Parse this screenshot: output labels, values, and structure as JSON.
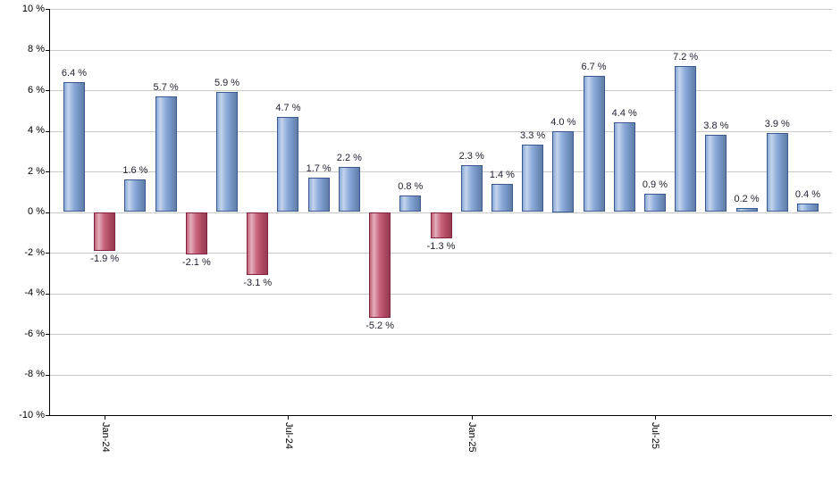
{
  "chart_data": {
    "type": "bar",
    "title": "",
    "xlabel": "",
    "ylabel": "",
    "grid": true,
    "legend_position": "none",
    "y_axis": {
      "min": -10,
      "max": 10,
      "step": 2,
      "suffix": " %",
      "tick_labels": [
        "10 %",
        "8 %",
        "6 %",
        "4 %",
        "2 %",
        "0 %",
        "-2 %",
        "-4 %",
        "-6 %",
        "-8 %",
        "-10 %"
      ]
    },
    "bars": [
      {
        "value": 6.4,
        "label": "6.4 %"
      },
      {
        "value": -1.9,
        "label": "-1.9 %"
      },
      {
        "value": 1.6,
        "label": "1.6 %"
      },
      {
        "value": 5.7,
        "label": "5.7 %"
      },
      {
        "value": -2.1,
        "label": "-2.1 %"
      },
      {
        "value": 5.9,
        "label": "5.9 %"
      },
      {
        "value": -3.1,
        "label": "-3.1 %"
      },
      {
        "value": 4.7,
        "label": "4.7 %"
      },
      {
        "value": 1.7,
        "label": "1.7 %"
      },
      {
        "value": 2.2,
        "label": "2.2 %"
      },
      {
        "value": -5.2,
        "label": "-5.2 %"
      },
      {
        "value": 0.8,
        "label": "0.8 %"
      },
      {
        "value": -1.3,
        "label": "-1.3 %"
      },
      {
        "value": 2.3,
        "label": "2.3 %"
      },
      {
        "value": 1.4,
        "label": "1.4 %"
      },
      {
        "value": 3.3,
        "label": "3.3 %"
      },
      {
        "value": 4.0,
        "label": "4.0 %"
      },
      {
        "value": 6.7,
        "label": "6.7 %"
      },
      {
        "value": 4.4,
        "label": "4.4 %"
      },
      {
        "value": 0.9,
        "label": "0.9 %"
      },
      {
        "value": 7.2,
        "label": "7.2 %"
      },
      {
        "value": 3.8,
        "label": "3.8 %"
      },
      {
        "value": 0.2,
        "label": "0.2 %"
      },
      {
        "value": 3.9,
        "label": "3.9 %"
      },
      {
        "value": 0.4,
        "label": "0.4 %"
      }
    ],
    "x_ticks": [
      {
        "bar_index": 1,
        "label": "Jan-24"
      },
      {
        "bar_index": 7,
        "label": "Jul-24"
      },
      {
        "bar_index": 13,
        "label": "Jan-25"
      },
      {
        "bar_index": 19,
        "label": "Jul-25"
      }
    ],
    "colors": {
      "positive_fill": "#7c9fd4",
      "positive_border": "#3a5a8e",
      "negative_fill": "#c04e6a",
      "negative_border": "#7d2340",
      "value_label": "#222233",
      "gridline": "#c9c9c9",
      "axis": "#000000",
      "background": "#ffffff"
    }
  }
}
